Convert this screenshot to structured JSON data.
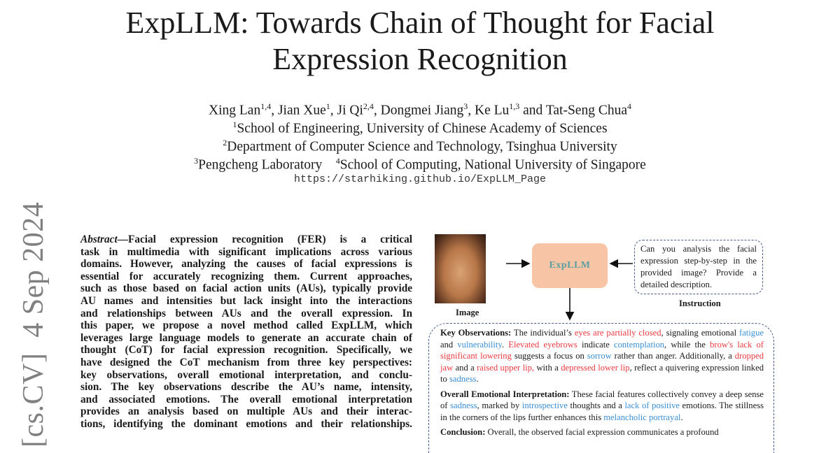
{
  "title_lines": [
    "ExpLLM: Towards Chain of Thought for Facial",
    "Expression Recognition"
  ],
  "authors": [
    {
      "name": "Xing Lan",
      "sup": "1,4"
    },
    {
      "name": "Jian Xue",
      "sup": "1"
    },
    {
      "name": "Ji Qi",
      "sup": "2,4"
    },
    {
      "name": "Dongmei Jiang",
      "sup": "3"
    },
    {
      "name": "Ke Lu",
      "sup": "1,3"
    },
    {
      "name": "Tat-Seng Chua",
      "sup": "4"
    }
  ],
  "affiliations": {
    "a1": {
      "sup": "1",
      "text": "School of Engineering, University of Chinese Academy of Sciences"
    },
    "a2": {
      "sup": "2",
      "text": "Department of Computer Science and Technology, Tsinghua University"
    },
    "a3": {
      "sup": "3",
      "text": "Pengcheng Laboratory"
    },
    "a4": {
      "sup": "4",
      "text": "School of Computing, National University of Singapore"
    }
  },
  "url": "https://starhiking.github.io/ExpLLM_Page",
  "arxiv_stamp": "[cs.CV]  4 Sep 2024",
  "abstract": {
    "label": "Abstract",
    "lines": [
      "—Facial expression recognition (FER) is a critical",
      "task in multimedia with significant implications across various",
      "domains. However, analyzing the causes of facial expressions is",
      "essential for accurately recognizing them. Current approaches,",
      "such as those based on facial action units (AUs), typically provide",
      "AU names and intensities but lack insight into the interactions",
      "and relationships between AUs and the overall expression. In",
      "this paper, we propose a novel method called ExpLLM, which",
      "leverages large language models to generate an accurate chain of",
      "thought (CoT) for facial expression recognition. Specifically, we",
      "have designed the CoT mechanism from three key perspectives:",
      "key observations, overall emotional interpretation, and conclu-",
      "sion. The key observations describe the AU’s name, intensity,",
      "and associated emotions. The overall emotional interpretation",
      "provides an analysis based on multiple AUs and their interac-",
      "tions, identifying the dominant emotions and their relationships."
    ]
  },
  "figure": {
    "image_label": "Image",
    "model_label": "ExpLLM",
    "instruction_text": "Can you analysis the facial expression step-by-step in the provided image? Provide a detailed description.",
    "instruction_label": "Instruction",
    "colors": {
      "au": "#ec3b42",
      "emotion": "#3a8fd4",
      "model_box": "#f7c4a5"
    },
    "sections": [
      {
        "heading": "Key Observations:",
        "segments": [
          {
            "t": " The individual’s ",
            "c": ""
          },
          {
            "t": "eyes are partially closed",
            "c": "red"
          },
          {
            "t": ", signaling emotional ",
            "c": ""
          },
          {
            "t": "fatigue",
            "c": "blue"
          },
          {
            "t": " and ",
            "c": ""
          },
          {
            "t": "vulnerability",
            "c": "blue"
          },
          {
            "t": ". ",
            "c": ""
          },
          {
            "t": "Elevated eyebrows",
            "c": "red"
          },
          {
            "t": " indicate ",
            "c": ""
          },
          {
            "t": "contemplation",
            "c": "blue"
          },
          {
            "t": ", while the ",
            "c": ""
          },
          {
            "t": "brow's lack of significant lowering",
            "c": "red"
          },
          {
            "t": " suggests a focus on ",
            "c": ""
          },
          {
            "t": "sorrow",
            "c": "blue"
          },
          {
            "t": " rather than anger. Additionally, a ",
            "c": ""
          },
          {
            "t": "dropped jaw",
            "c": "red"
          },
          {
            "t": " and a ",
            "c": ""
          },
          {
            "t": "raised upper lip,",
            "c": "red"
          },
          {
            "t": " with a ",
            "c": ""
          },
          {
            "t": "depressed lower lip",
            "c": "red"
          },
          {
            "t": ", reflect a quivering expression linked to ",
            "c": ""
          },
          {
            "t": "sadness",
            "c": "blue"
          },
          {
            "t": ".",
            "c": ""
          }
        ]
      },
      {
        "heading": "Overall Emotional Interpretation:",
        "segments": [
          {
            "t": " These facial features collectively convey a deep sense of ",
            "c": ""
          },
          {
            "t": "sadness",
            "c": "blue"
          },
          {
            "t": ", marked by ",
            "c": ""
          },
          {
            "t": "introspective",
            "c": "blue"
          },
          {
            "t": " thoughts and a ",
            "c": ""
          },
          {
            "t": "lack of positive",
            "c": "blue"
          },
          {
            "t": " emotions. The stillness in the corners of the lips further enhances this ",
            "c": ""
          },
          {
            "t": "melancholic portrayal",
            "c": "blue"
          },
          {
            "t": ".",
            "c": ""
          }
        ]
      },
      {
        "heading": "Conclusion:",
        "segments": [
          {
            "t": " Overall, the observed facial expression communicates a profound",
            "c": ""
          }
        ]
      }
    ]
  }
}
